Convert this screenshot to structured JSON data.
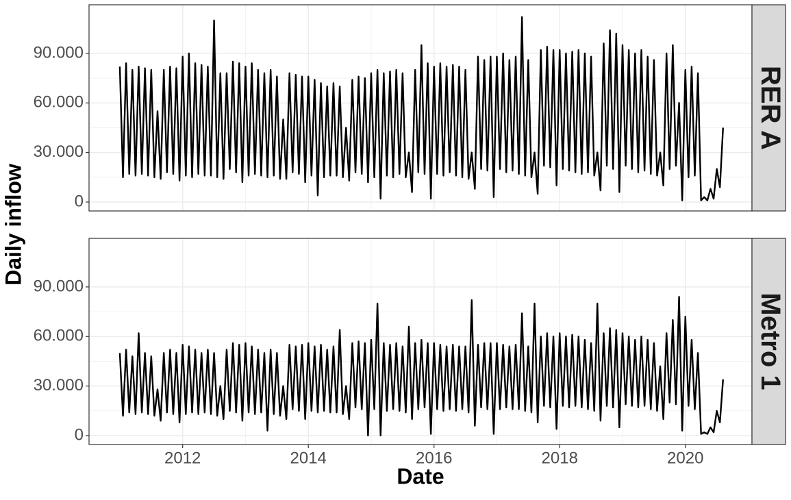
{
  "chart_data": [
    {
      "type": "line",
      "facet": "RER A",
      "y_label": "Daily inflow",
      "xlim": [
        2010.51,
        2021.06
      ],
      "xticks": [
        2012,
        2014,
        2016,
        2018,
        2020
      ],
      "ylim": [
        -5400,
        119400
      ],
      "yticks": [
        {
          "value": 0,
          "label": "0"
        },
        {
          "value": 30000,
          "label": "30.000"
        },
        {
          "value": 60000,
          "label": "60.000"
        },
        {
          "value": 90000,
          "label": "90.000"
        }
      ],
      "grid": true,
      "x": [
        2011.0,
        2011.05,
        2011.1,
        2011.15,
        2011.2,
        2011.25,
        2011.3,
        2011.35,
        2011.4,
        2011.45,
        2011.5,
        2011.55,
        2011.6,
        2011.65,
        2011.7,
        2011.75,
        2011.8,
        2011.85,
        2011.9,
        2011.95,
        2012.0,
        2012.05,
        2012.1,
        2012.15,
        2012.2,
        2012.25,
        2012.3,
        2012.35,
        2012.4,
        2012.45,
        2012.5,
        2012.55,
        2012.6,
        2012.65,
        2012.7,
        2012.75,
        2012.8,
        2012.85,
        2012.9,
        2012.95,
        2013.0,
        2013.05,
        2013.1,
        2013.15,
        2013.2,
        2013.25,
        2013.3,
        2013.35,
        2013.4,
        2013.45,
        2013.5,
        2013.55,
        2013.6,
        2013.65,
        2013.7,
        2013.75,
        2013.8,
        2013.85,
        2013.9,
        2013.95,
        2014.0,
        2014.05,
        2014.1,
        2014.15,
        2014.2,
        2014.25,
        2014.3,
        2014.35,
        2014.4,
        2014.45,
        2014.5,
        2014.55,
        2014.6,
        2014.65,
        2014.7,
        2014.75,
        2014.8,
        2014.85,
        2014.9,
        2014.95,
        2015.0,
        2015.05,
        2015.1,
        2015.15,
        2015.2,
        2015.25,
        2015.3,
        2015.35,
        2015.4,
        2015.45,
        2015.5,
        2015.55,
        2015.6,
        2015.65,
        2015.7,
        2015.75,
        2015.8,
        2015.85,
        2015.9,
        2015.95,
        2016.0,
        2016.05,
        2016.1,
        2016.15,
        2016.2,
        2016.25,
        2016.3,
        2016.35,
        2016.4,
        2016.45,
        2016.5,
        2016.55,
        2016.6,
        2016.65,
        2016.7,
        2016.75,
        2016.8,
        2016.85,
        2016.9,
        2016.95,
        2017.0,
        2017.05,
        2017.1,
        2017.15,
        2017.2,
        2017.25,
        2017.3,
        2017.35,
        2017.4,
        2017.45,
        2017.5,
        2017.55,
        2017.6,
        2017.65,
        2017.7,
        2017.75,
        2017.8,
        2017.85,
        2017.9,
        2017.95,
        2018.0,
        2018.05,
        2018.1,
        2018.15,
        2018.2,
        2018.25,
        2018.3,
        2018.35,
        2018.4,
        2018.45,
        2018.5,
        2018.55,
        2018.6,
        2018.65,
        2018.7,
        2018.75,
        2018.8,
        2018.85,
        2018.9,
        2018.95,
        2019.0,
        2019.05,
        2019.1,
        2019.15,
        2019.2,
        2019.25,
        2019.3,
        2019.35,
        2019.4,
        2019.45,
        2019.5,
        2019.55,
        2019.6,
        2019.65,
        2019.7,
        2019.75,
        2019.8,
        2019.85,
        2019.9,
        2019.95,
        2020.0,
        2020.05,
        2020.1,
        2020.15,
        2020.2,
        2020.25,
        2020.3,
        2020.35,
        2020.4,
        2020.45,
        2020.5,
        2020.55,
        2020.6
      ],
      "series": [
        {
          "color": "#000000",
          "values": [
            82000,
            15000,
            84000,
            17000,
            80000,
            16000,
            82000,
            17000,
            81000,
            16000,
            80000,
            15000,
            55000,
            14000,
            80000,
            18000,
            82000,
            17000,
            81000,
            13000,
            88000,
            16000,
            90000,
            15000,
            84000,
            17000,
            83000,
            16000,
            82000,
            16000,
            110000,
            15000,
            78000,
            14000,
            78000,
            20000,
            85000,
            18000,
            84000,
            12000,
            82000,
            16000,
            84000,
            17000,
            80000,
            16000,
            78000,
            15000,
            80000,
            16000,
            76000,
            14000,
            50000,
            14000,
            78000,
            18000,
            77000,
            17000,
            76000,
            12000,
            76000,
            16000,
            74000,
            4000,
            72000,
            15000,
            70000,
            16000,
            72000,
            16000,
            70000,
            15000,
            45000,
            13000,
            74000,
            18000,
            76000,
            17000,
            75000,
            12000,
            78000,
            15000,
            80000,
            2000,
            78000,
            16000,
            79000,
            15000,
            80000,
            17000,
            78000,
            15000,
            30000,
            6000,
            80000,
            18000,
            95000,
            17000,
            84000,
            2000,
            82000,
            17000,
            84000,
            16000,
            82000,
            18000,
            83000,
            16000,
            82000,
            15000,
            80000,
            14000,
            30000,
            8000,
            88000,
            20000,
            86000,
            19000,
            88000,
            3000,
            88000,
            20000,
            90000,
            18000,
            86000,
            19000,
            88000,
            17000,
            112000,
            16000,
            86000,
            15000,
            30000,
            5000,
            92000,
            22000,
            94000,
            21000,
            92000,
            10000,
            92000,
            20000,
            90000,
            19000,
            91000,
            18000,
            92000,
            17000,
            90000,
            18000,
            88000,
            16000,
            30000,
            7000,
            96000,
            22000,
            104000,
            20000,
            102000,
            6000,
            95000,
            22000,
            92000,
            20000,
            90000,
            18000,
            92000,
            19000,
            88000,
            17000,
            86000,
            16000,
            30000,
            10000,
            90000,
            20000,
            95000,
            22000,
            60000,
            1000,
            80000,
            15000,
            82000,
            16000,
            78000,
            1000,
            3000,
            1000,
            8000,
            2000,
            20000,
            9000,
            45000
          ]
        }
      ]
    },
    {
      "type": "line",
      "facet": "Metro 1",
      "x_label": "Date",
      "xlim": [
        2010.51,
        2021.06
      ],
      "xticks": [
        2012,
        2014,
        2016,
        2018,
        2020
      ],
      "ylim": [
        -5400,
        119400
      ],
      "yticks": [
        {
          "value": 0,
          "label": "0"
        },
        {
          "value": 30000,
          "label": "30.000"
        },
        {
          "value": 60000,
          "label": "60.000"
        },
        {
          "value": 90000,
          "label": "90.000"
        }
      ],
      "grid": true,
      "x": [
        2011.0,
        2011.05,
        2011.1,
        2011.15,
        2011.2,
        2011.25,
        2011.3,
        2011.35,
        2011.4,
        2011.45,
        2011.5,
        2011.55,
        2011.6,
        2011.65,
        2011.7,
        2011.75,
        2011.8,
        2011.85,
        2011.9,
        2011.95,
        2012.0,
        2012.05,
        2012.1,
        2012.15,
        2012.2,
        2012.25,
        2012.3,
        2012.35,
        2012.4,
        2012.45,
        2012.5,
        2012.55,
        2012.6,
        2012.65,
        2012.7,
        2012.75,
        2012.8,
        2012.85,
        2012.9,
        2012.95,
        2013.0,
        2013.05,
        2013.1,
        2013.15,
        2013.2,
        2013.25,
        2013.3,
        2013.35,
        2013.4,
        2013.45,
        2013.5,
        2013.55,
        2013.6,
        2013.65,
        2013.7,
        2013.75,
        2013.8,
        2013.85,
        2013.9,
        2013.95,
        2014.0,
        2014.05,
        2014.1,
        2014.15,
        2014.2,
        2014.25,
        2014.3,
        2014.35,
        2014.4,
        2014.45,
        2014.5,
        2014.55,
        2014.6,
        2014.65,
        2014.7,
        2014.75,
        2014.8,
        2014.85,
        2014.9,
        2014.95,
        2015.0,
        2015.05,
        2015.1,
        2015.15,
        2015.2,
        2015.25,
        2015.3,
        2015.35,
        2015.4,
        2015.45,
        2015.5,
        2015.55,
        2015.6,
        2015.65,
        2015.7,
        2015.75,
        2015.8,
        2015.85,
        2015.9,
        2015.95,
        2016.0,
        2016.05,
        2016.1,
        2016.15,
        2016.2,
        2016.25,
        2016.3,
        2016.35,
        2016.4,
        2016.45,
        2016.5,
        2016.55,
        2016.6,
        2016.65,
        2016.7,
        2016.75,
        2016.8,
        2016.85,
        2016.9,
        2016.95,
        2017.0,
        2017.05,
        2017.1,
        2017.15,
        2017.2,
        2017.25,
        2017.3,
        2017.35,
        2017.4,
        2017.45,
        2017.5,
        2017.55,
        2017.6,
        2017.65,
        2017.7,
        2017.75,
        2017.8,
        2017.85,
        2017.9,
        2017.95,
        2018.0,
        2018.05,
        2018.1,
        2018.15,
        2018.2,
        2018.25,
        2018.3,
        2018.35,
        2018.4,
        2018.45,
        2018.5,
        2018.55,
        2018.6,
        2018.65,
        2018.7,
        2018.75,
        2018.8,
        2018.85,
        2018.9,
        2018.95,
        2019.0,
        2019.05,
        2019.1,
        2019.15,
        2019.2,
        2019.25,
        2019.3,
        2019.35,
        2019.4,
        2019.45,
        2019.5,
        2019.55,
        2019.6,
        2019.65,
        2019.7,
        2019.75,
        2019.8,
        2019.85,
        2019.9,
        2019.95,
        2020.0,
        2020.05,
        2020.1,
        2020.15,
        2020.2,
        2020.25,
        2020.3,
        2020.35,
        2020.4,
        2020.45,
        2020.5,
        2020.55,
        2020.6
      ],
      "series": [
        {
          "color": "#000000",
          "values": [
            50000,
            12000,
            52000,
            14000,
            48000,
            13000,
            62000,
            14000,
            50000,
            13000,
            48000,
            12000,
            28000,
            9000,
            50000,
            14000,
            52000,
            13000,
            50000,
            8000,
            55000,
            13000,
            54000,
            14000,
            52000,
            13000,
            50000,
            14000,
            52000,
            13000,
            50000,
            12000,
            30000,
            10000,
            52000,
            15000,
            56000,
            14000,
            55000,
            9000,
            56000,
            14000,
            54000,
            13000,
            52000,
            14000,
            50000,
            3000,
            52000,
            13000,
            50000,
            12000,
            30000,
            10000,
            55000,
            16000,
            54000,
            15000,
            55000,
            10000,
            56000,
            15000,
            54000,
            14000,
            55000,
            15000,
            52000,
            14000,
            54000,
            14000,
            64000,
            13000,
            30000,
            10000,
            56000,
            17000,
            57000,
            16000,
            56000,
            0,
            58000,
            16000,
            80000,
            0,
            56000,
            15000,
            55000,
            16000,
            56000,
            15000,
            54000,
            14000,
            66000,
            10000,
            56000,
            16000,
            58000,
            17000,
            56000,
            1000,
            56000,
            16000,
            55000,
            15000,
            54000,
            16000,
            55000,
            15000,
            54000,
            16000,
            54000,
            14000,
            82000,
            6000,
            55000,
            17000,
            56000,
            16000,
            56000,
            1000,
            56000,
            16000,
            55000,
            17000,
            54000,
            16000,
            55000,
            16000,
            74000,
            15000,
            54000,
            14000,
            80000,
            8000,
            60000,
            18000,
            62000,
            17000,
            60000,
            4000,
            62000,
            18000,
            60000,
            17000,
            61000,
            18000,
            60000,
            17000,
            58000,
            16000,
            56000,
            15000,
            80000,
            9000,
            62000,
            18000,
            65000,
            17000,
            64000,
            5000,
            62000,
            19000,
            60000,
            18000,
            58000,
            17000,
            60000,
            18000,
            58000,
            16000,
            56000,
            15000,
            42000,
            10000,
            62000,
            20000,
            70000,
            19000,
            84000,
            3000,
            72000,
            18000,
            58000,
            16000,
            50000,
            1000,
            2000,
            1000,
            5000,
            2000,
            15000,
            8000,
            34000
          ]
        }
      ]
    }
  ]
}
